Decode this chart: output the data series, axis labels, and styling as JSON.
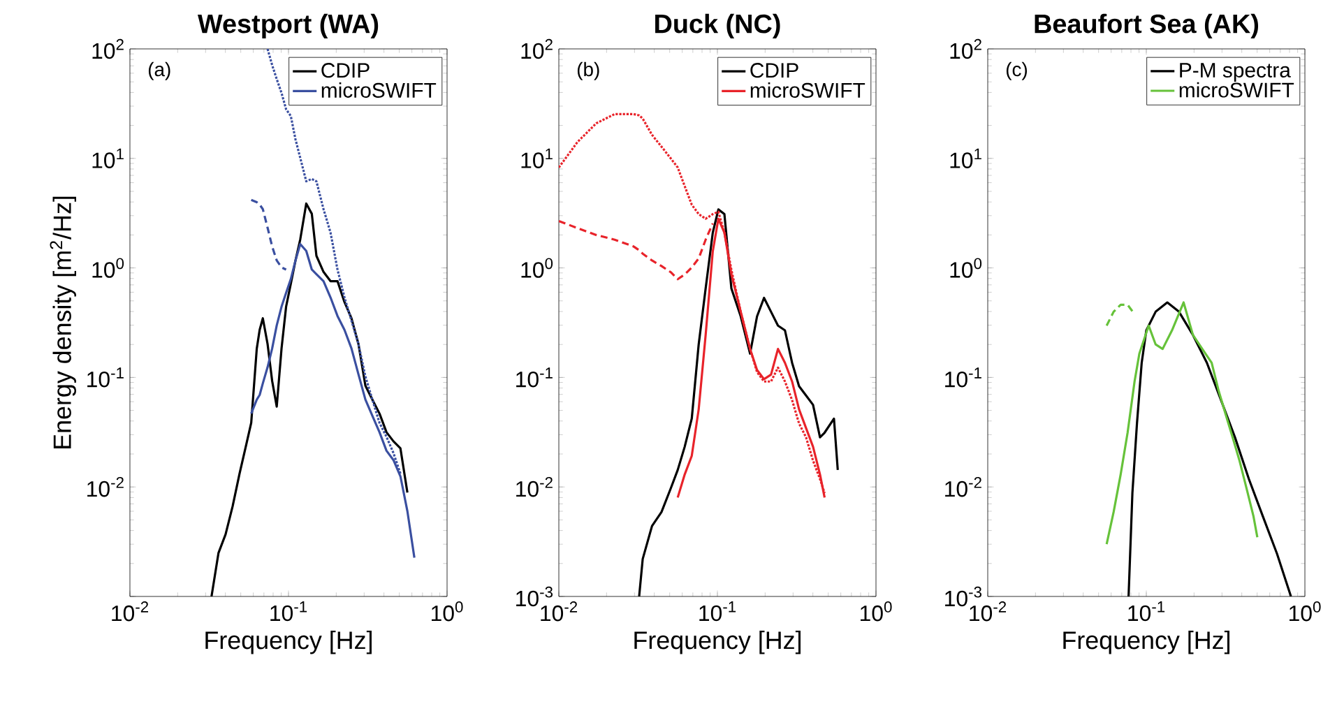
{
  "chart_data": [
    {
      "type": "line",
      "title": "Westport (WA)",
      "xlabel": "Frequency [Hz]",
      "ylabel": "Energy density [m$^{2}$/Hz]",
      "log": "xy",
      "legend": "top right",
      "annotations": [
        "(a)"
      ],
      "xlim": [
        0.01,
        1
      ],
      "ylim": [
        0.001,
        100
      ],
      "xticks": [
        {
          "value": 0.01,
          "label": "10$^{-2}$"
        },
        {
          "value": 0.1,
          "label": "10$^{-1}$"
        },
        {
          "value": 1,
          "label": "10$^{0}$"
        }
      ],
      "yticks": [
        {
          "value": 0.001,
          "label": null
        },
        {
          "value": 0.01,
          "label": "10$^{-2}$"
        },
        {
          "value": 0.1,
          "label": "10$^{-1}$"
        },
        {
          "value": 1,
          "label": "10$^{0}$"
        },
        {
          "value": 10,
          "label": "10$^{1}$"
        },
        {
          "value": 100,
          "label": "10$^{2}$"
        }
      ],
      "x": [
        0.0327,
        0.0362,
        0.0401,
        0.0444,
        0.0491,
        0.0543,
        0.0582,
        0.0631,
        0.0658,
        0.0689,
        0.0738,
        0.0789,
        0.0843,
        0.0904,
        0.0966,
        0.1035,
        0.1107,
        0.1186,
        0.1294,
        0.1403,
        0.15,
        0.1663,
        0.184,
        0.2037,
        0.2254,
        0.2495,
        0.2761,
        0.3055,
        0.3381,
        0.375,
        0.415,
        0.459,
        0.508,
        0.562,
        0.622
      ],
      "series": [
        {
          "name": "CDIP",
          "color": "#000000",
          "line_style": "solid",
          "values": [
            0.001,
            0.0025,
            0.00369,
            0.00664,
            0.0132,
            0.0248,
            0.0385,
            0.184,
            0.272,
            0.347,
            0.202,
            0.0927,
            0.0542,
            0.184,
            0.443,
            0.721,
            1.17,
            1.82,
            3.87,
            3.12,
            1.29,
            0.92,
            0.757,
            0.757,
            0.488,
            0.347,
            0.202,
            0.0841,
            0.0627,
            0.0468,
            0.0316,
            0.0261,
            0.0225,
            0.0089,
            null
          ]
        },
        {
          "name": "microSWIFT",
          "color": "#3a4fa0",
          "line_style": "solid",
          "values": [
            null,
            null,
            null,
            null,
            null,
            null,
            0.0468,
            0.0627,
            0.0692,
            0.0883,
            0.124,
            0.184,
            0.299,
            0.443,
            0.593,
            0.794,
            1.17,
            1.65,
            1.43,
            0.966,
            0.877,
            0.757,
            0.538,
            0.364,
            0.272,
            0.184,
            0.107,
            0.0627,
            0.0446,
            0.0316,
            0.0214,
            0.0176,
            0.0125,
            0.00601,
            0.00226
          ]
        },
        {
          "color": "#3a4fa0",
          "line_style": "dashed",
          "values": [
            null,
            null,
            null,
            null,
            null,
            null,
            4.18,
            3.98,
            3.79,
            3.44,
            2.33,
            1.57,
            1.17,
            1.01,
            0.966,
            null,
            null,
            null,
            null,
            null,
            null,
            null,
            null,
            null,
            null,
            null,
            null,
            null,
            null,
            null,
            null,
            null,
            null,
            null,
            null
          ]
        },
        {
          "color": "#3a4fa0",
          "line_style": "dotted",
          "values": [
            null,
            null,
            null,
            null,
            null,
            null,
            null,
            null,
            null,
            null,
            100,
            71.1,
            53,
            39.5,
            28.1,
            24.3,
            14.9,
            10.1,
            6.18,
            6.49,
            6.18,
            3.44,
            2.11,
            0.966,
            0.538,
            0.33,
            0.202,
            0.102,
            0.0627,
            0.0385,
            0.0287,
            0.0204,
            0.0132,
            null,
            null
          ]
        }
      ]
    },
    {
      "type": "line",
      "title": "Duck (NC)",
      "xlabel": "Frequency [Hz]",
      "log": "xy",
      "legend": "top right",
      "annotations": [
        "(b)"
      ],
      "xlim": [
        0.01,
        1
      ],
      "ylim": [
        0.001,
        100
      ],
      "xticks": [
        {
          "value": 0.01,
          "label": "10$^{-2}$"
        },
        {
          "value": 0.1,
          "label": "10$^{-1}$"
        },
        {
          "value": 1,
          "label": "10$^{0}$"
        }
      ],
      "yticks": [
        {
          "value": 0.001,
          "label": "10$^{-3}$"
        },
        {
          "value": 0.01,
          "label": "10$^{-2}$"
        },
        {
          "value": 0.1,
          "label": "10$^{-1}$"
        },
        {
          "value": 1,
          "label": "10$^{0}$"
        },
        {
          "value": 10,
          "label": "10$^{1}$"
        },
        {
          "value": 100,
          "label": "10$^{2}$"
        }
      ],
      "x": [
        0.01,
        0.0131,
        0.0172,
        0.0225,
        0.0296,
        0.0321,
        0.0338,
        0.0387,
        0.0444,
        0.0508,
        0.0562,
        0.0622,
        0.0689,
        0.0762,
        0.0843,
        0.0935,
        0.1014,
        0.1107,
        0.1225,
        0.1403,
        0.1607,
        0.1778,
        0.1968,
        0.2178,
        0.241,
        0.2667,
        0.2958,
        0.3273,
        0.3622,
        0.4009,
        0.4436,
        0.4742,
        0.5433,
        0.5741
      ],
      "series": [
        {
          "name": "CDIP",
          "color": "#000000",
          "line_style": "solid",
          "values": [
            null,
            null,
            null,
            null,
            null,
            0.001,
            0.0022,
            0.0044,
            0.0059,
            0.0097,
            0.0143,
            0.0233,
            0.042,
            0.2,
            0.649,
            2.1,
            3.42,
            3.1,
            0.649,
            0.361,
            0.165,
            0.361,
            0.533,
            0.398,
            0.297,
            0.269,
            0.136,
            0.0832,
            0.0684,
            0.0562,
            0.0284,
            0.0313,
            0.042,
            0.0143
          ]
        },
        {
          "name": "microSWIFT",
          "color": "#e8232a",
          "line_style": "solid",
          "values": [
            null,
            null,
            null,
            null,
            null,
            null,
            null,
            null,
            null,
            null,
            0.008,
            0.013,
            0.0192,
            0.0511,
            0.244,
            1.42,
            2.81,
            2.1,
            0.871,
            0.398,
            0.182,
            0.117,
            0.0964,
            0.106,
            0.182,
            0.136,
            0.0918,
            0.0511,
            0.0345,
            0.0233,
            0.013,
            0.008,
            null,
            null
          ]
        },
        {
          "color": "#e8232a",
          "line_style": "dashed",
          "values": [
            2.68,
            2.31,
            2.0,
            1.81,
            1.57,
            1.45,
            1.35,
            1.17,
            1.04,
            0.914,
            0.789,
            0.871,
            1.01,
            1.22,
            1.81,
            2.55,
            null,
            null,
            null,
            null,
            null,
            null,
            null,
            null,
            null,
            null,
            null,
            null,
            null,
            null,
            null,
            null,
            null,
            null
          ]
        },
        {
          "color": "#e8232a",
          "line_style": "dotted",
          "values": [
            8.26,
            14.1,
            20.9,
            25.4,
            25.4,
            24.7,
            23.1,
            16.4,
            12.8,
            10.0,
            8.26,
            5.58,
            3.78,
            3.1,
            2.81,
            3.1,
            3.26,
            2.1,
            0.96,
            0.398,
            0.182,
            0.112,
            0.0918,
            0.0918,
            0.123,
            0.0918,
            0.0621,
            0.038,
            0.0284,
            0.0174,
            0.0118,
            0.0088,
            null,
            null
          ]
        }
      ]
    },
    {
      "type": "line",
      "title": "Beaufort Sea (AK)",
      "xlabel": "Frequency [Hz]",
      "log": "xy",
      "legend": "top right",
      "annotations": [
        "(c)"
      ],
      "xlim": [
        0.01,
        1
      ],
      "ylim": [
        0.001,
        100
      ],
      "xticks": [
        {
          "value": 0.01,
          "label": "10$^{-2}$"
        },
        {
          "value": 0.1,
          "label": "10$^{-1}$"
        },
        {
          "value": 1,
          "label": "10$^{0}$"
        }
      ],
      "yticks": [
        {
          "value": 0.001,
          "label": "10$^{-3}$"
        },
        {
          "value": 0.01,
          "label": "10$^{-2}$"
        },
        {
          "value": 0.1,
          "label": "10$^{-1}$"
        },
        {
          "value": 1,
          "label": "10$^{0}$"
        },
        {
          "value": 10,
          "label": "10$^{1}$"
        },
        {
          "value": 100,
          "label": "10$^{2}$"
        }
      ],
      "series": [
        {
          "name": "P-M spectra",
          "color": "#000000",
          "line_style": "solid",
          "x": [
            0.0773,
            0.0817,
            0.0873,
            0.0935,
            0.1,
            0.1145,
            0.1356,
            0.1607,
            0.1968,
            0.241,
            0.2958,
            0.3622,
            0.4436,
            0.5433,
            0.6668,
            0.8166
          ],
          "values": [
            0.001,
            0.0088,
            0.038,
            0.136,
            0.269,
            0.398,
            0.484,
            0.398,
            0.244,
            0.136,
            0.0621,
            0.0284,
            0.0118,
            0.00538,
            0.00246,
            0.001
          ]
        },
        {
          "name": "microSWIFT",
          "color": "#66c23a",
          "line_style": "solid",
          "x": [
            0.0562,
            0.0622,
            0.0689,
            0.0762,
            0.0843,
            0.0904,
            0.1035,
            0.1145,
            0.1267,
            0.1452,
            0.1718,
            0.1968,
            0.2254,
            0.2582,
            0.2858,
            0.3162,
            0.35,
            0.387,
            0.4287,
            0.4742,
            0.5012
          ],
          "values": [
            0.003,
            0.0059,
            0.013,
            0.0313,
            0.0918,
            0.165,
            0.297,
            0.2,
            0.182,
            0.269,
            0.484,
            0.244,
            0.182,
            0.136,
            0.0755,
            0.0462,
            0.0284,
            0.0174,
            0.0097,
            0.00538,
            0.00347
          ]
        },
        {
          "color": "#66c23a",
          "line_style": "dashed",
          "x": [
            0.0562,
            0.0622,
            0.0689,
            0.0762,
            0.0843
          ],
          "values": [
            0.297,
            0.398,
            0.461,
            0.461,
            0.379
          ]
        }
      ]
    }
  ]
}
